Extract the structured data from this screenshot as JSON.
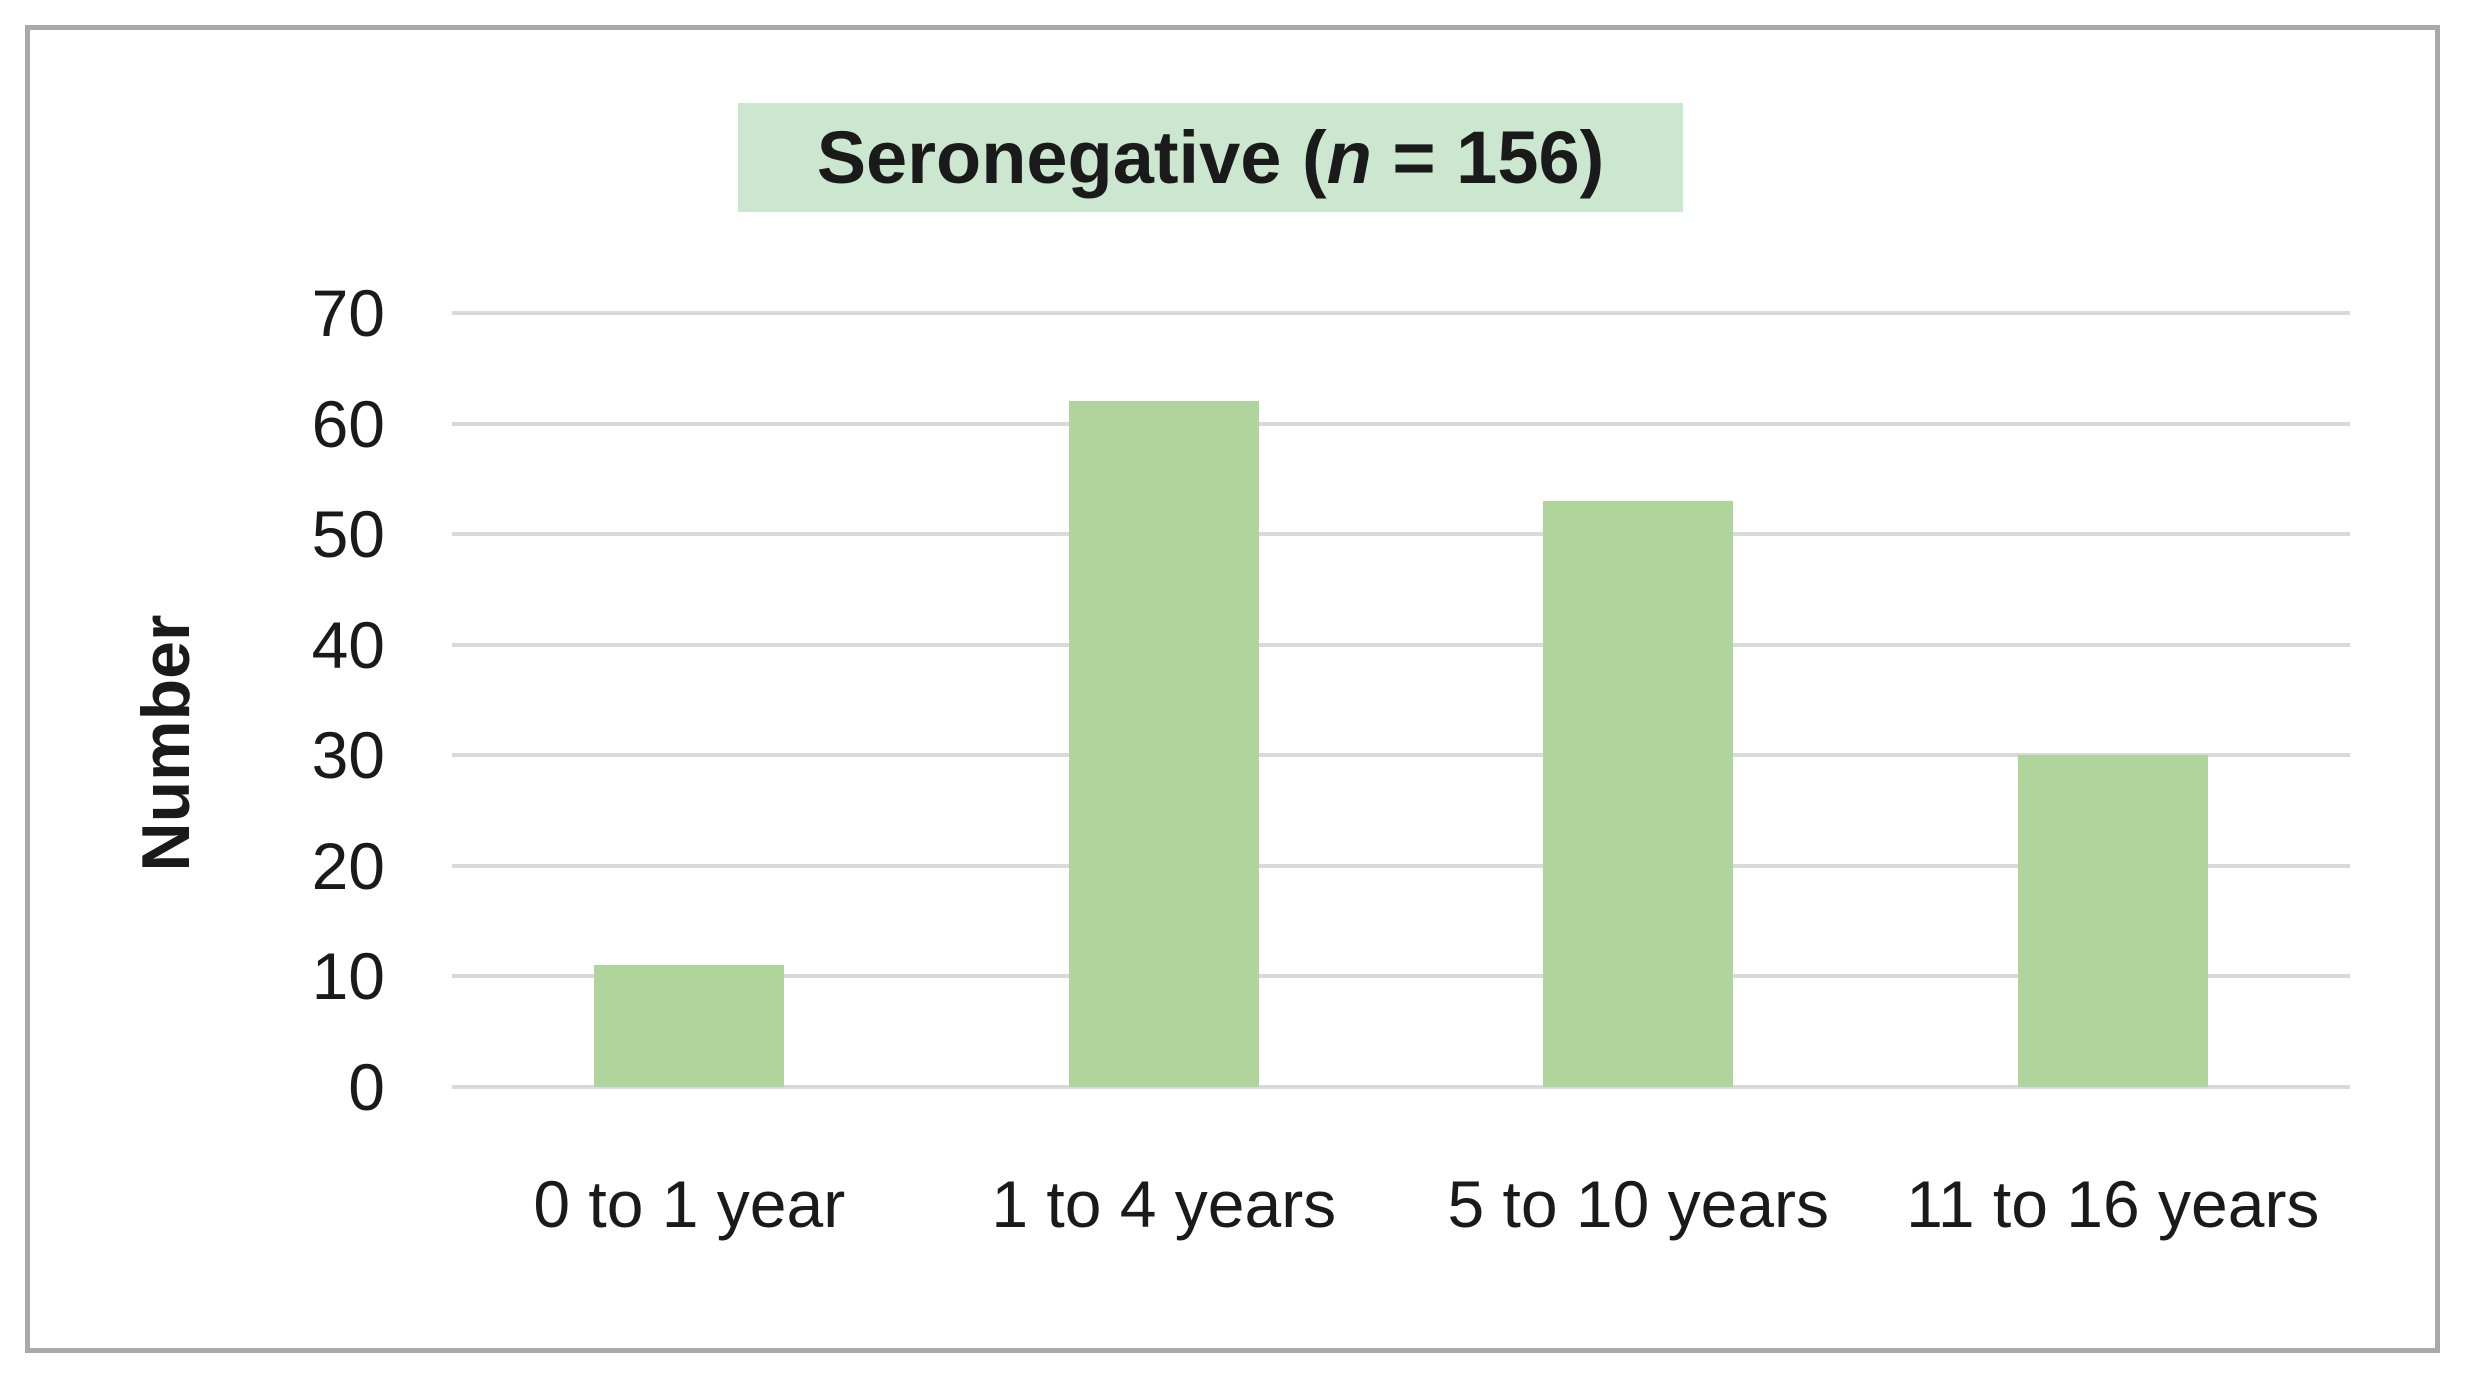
{
  "colors": {
    "background": "#ffffff",
    "bar_fill": "#afd49c",
    "title_box_bg": "#cbe7cf",
    "gridline": "#d9d9d9",
    "frame_border": "#a9a9a9",
    "text": "#1a1a1a"
  },
  "title": {
    "prefix": "Seronegative (",
    "n_italic": "n",
    "suffix": " = 156)"
  },
  "ylabel": "Number",
  "chart_data": {
    "type": "bar",
    "title": "Seronegative (n = 156)",
    "n_total": 156,
    "categories": [
      "0 to 1 year",
      "1 to 4 years",
      "5 to 10 years",
      "11 to 16 years"
    ],
    "values": [
      11,
      62,
      53,
      30
    ],
    "xlabel": "",
    "ylabel": "Number",
    "ylim": [
      0,
      70
    ],
    "yticks": [
      0,
      10,
      20,
      30,
      40,
      50,
      60,
      70
    ],
    "grid": "horizontal-only",
    "legend": "none",
    "bar_color": "#afd49c"
  }
}
